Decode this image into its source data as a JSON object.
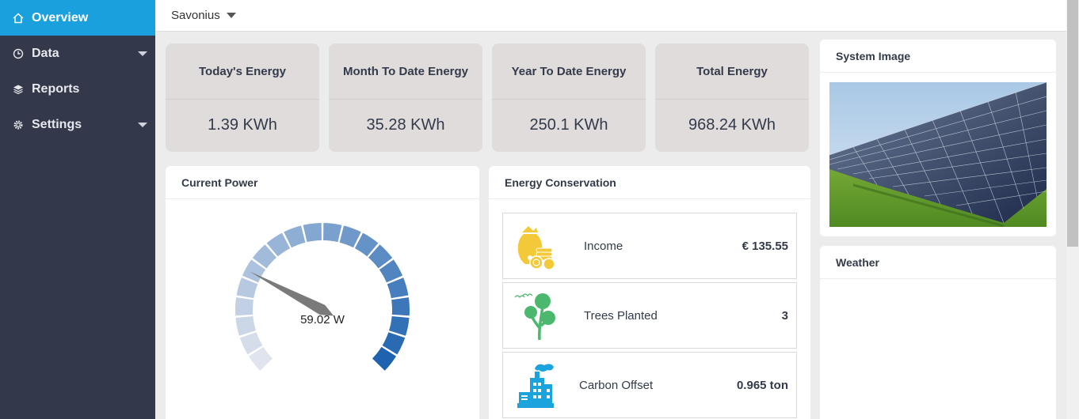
{
  "sidebar": {
    "items": [
      {
        "label": "Overview",
        "icon": "home-icon",
        "active": true
      },
      {
        "label": "Data",
        "icon": "clock-icon",
        "has_submenu": true
      },
      {
        "label": "Reports",
        "icon": "layers-icon"
      },
      {
        "label": "Settings",
        "icon": "gear-icon",
        "has_submenu": true
      }
    ]
  },
  "header": {
    "site": "Savonius"
  },
  "stats": [
    {
      "title": "Today's Energy",
      "value": "1.39 KWh"
    },
    {
      "title": "Month To Date Energy",
      "value": "35.28 KWh"
    },
    {
      "title": "Year To Date Energy",
      "value": "250.1 KWh"
    },
    {
      "title": "Total Energy",
      "value": "968.24 KWh"
    }
  ],
  "current_power": {
    "title": "Current Power",
    "value_label": "59.02 W",
    "needle_fraction": 0.27
  },
  "conservation": {
    "title": "Energy Conservation",
    "rows": [
      {
        "label": "Income",
        "value": "€ 135.55",
        "icon": "money-bag-icon"
      },
      {
        "label": "Trees Planted",
        "value": "3",
        "icon": "tree-icon"
      },
      {
        "label": "Carbon Offset",
        "value": "0.965 ton",
        "icon": "factory-icon"
      }
    ]
  },
  "system_image": {
    "title": "System Image"
  },
  "weather": {
    "title": "Weather"
  },
  "colors": {
    "sidebar_bg": "#33394a",
    "active": "#1aa0dd",
    "card_bg": "#e0dcdc",
    "gauge_dark": "#1f63b0",
    "gauge_light": "#dfe4ee"
  }
}
